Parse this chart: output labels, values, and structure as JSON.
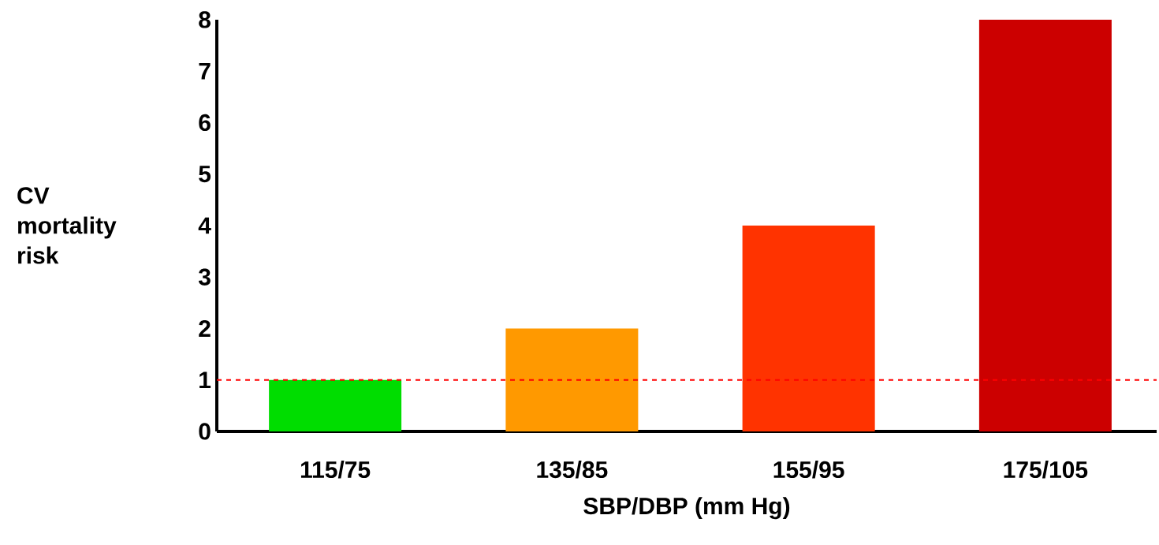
{
  "chart_data": {
    "type": "bar",
    "xlabel": "SBP/DBP (mm Hg)",
    "ylabel": "CV mortality risk",
    "categories": [
      "115/75",
      "135/85",
      "155/95",
      "175/105"
    ],
    "values": [
      1,
      2,
      4,
      8
    ],
    "colors": [
      "#00dd00",
      "#ff9900",
      "#ff3300",
      "#cc0000"
    ],
    "ylim": [
      0,
      8
    ],
    "yticks": [
      0,
      1,
      2,
      3,
      4,
      5,
      6,
      7,
      8
    ],
    "ref_lines": [
      {
        "axis": "y",
        "value": 1,
        "color": "#ff0000",
        "line_style": "dashed"
      }
    ],
    "grid": false
  }
}
